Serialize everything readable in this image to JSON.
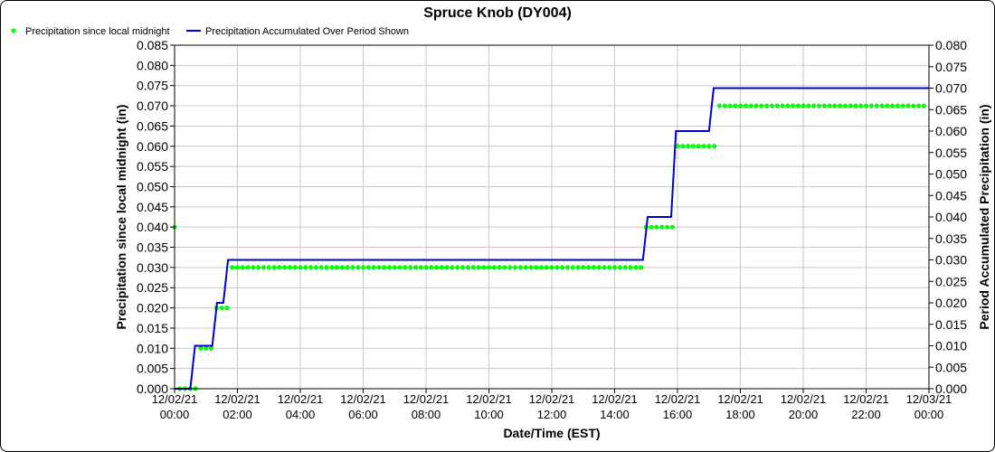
{
  "chart_data": {
    "type": "line",
    "title": "Spruce Knob (DY004)",
    "xlabel": "Date/Time (EST)",
    "ylabel_left": "Precipitation since local midnight (in)",
    "ylabel_right": "Period Accumulated Precipitation (in)",
    "ylim_left": [
      0,
      0.085
    ],
    "ylim_right": [
      0,
      0.08
    ],
    "yticks_left": [
      "0.000",
      "0.005",
      "0.010",
      "0.015",
      "0.020",
      "0.025",
      "0.030",
      "0.035",
      "0.040",
      "0.045",
      "0.050",
      "0.055",
      "0.060",
      "0.065",
      "0.070",
      "0.075",
      "0.080",
      "0.085"
    ],
    "yticks_right": [
      "0.000",
      "0.005",
      "0.010",
      "0.015",
      "0.020",
      "0.025",
      "0.030",
      "0.035",
      "0.040",
      "0.045",
      "0.050",
      "0.055",
      "0.060",
      "0.065",
      "0.070",
      "0.075",
      "0.080"
    ],
    "xlim_hours": [
      0,
      24
    ],
    "xticks": [
      {
        "date": "12/02/21",
        "time": "00:00"
      },
      {
        "date": "12/02/21",
        "time": "02:00"
      },
      {
        "date": "12/02/21",
        "time": "04:00"
      },
      {
        "date": "12/02/21",
        "time": "06:00"
      },
      {
        "date": "12/02/21",
        "time": "08:00"
      },
      {
        "date": "12/02/21",
        "time": "10:00"
      },
      {
        "date": "12/02/21",
        "time": "12:00"
      },
      {
        "date": "12/02/21",
        "time": "14:00"
      },
      {
        "date": "12/02/21",
        "time": "16:00"
      },
      {
        "date": "12/02/21",
        "time": "18:00"
      },
      {
        "date": "12/02/21",
        "time": "20:00"
      },
      {
        "date": "12/02/21",
        "time": "22:00"
      },
      {
        "date": "12/03/21",
        "time": "00:00"
      }
    ],
    "grid": true,
    "legend_position": "top-left",
    "series": [
      {
        "name": "Precipitation since local midnight",
        "color": "#00ff00",
        "marker": "dot",
        "axis": "left",
        "x_start": 0,
        "x_step": 0.1667,
        "x_end": 24,
        "steps": [
          {
            "from": 0.0,
            "value": 0.04
          },
          {
            "from": 0.1,
            "value": 0.0
          },
          {
            "from": 0.67,
            "value": 0.01
          },
          {
            "from": 1.33,
            "value": 0.02
          },
          {
            "from": 1.67,
            "value": 0.03
          },
          {
            "from": 15.0,
            "value": 0.04
          },
          {
            "from": 16.0,
            "value": 0.06
          },
          {
            "from": 17.33,
            "value": 0.07
          }
        ]
      },
      {
        "name": "Precipitation Accumulated Over Period Shown",
        "color": "#0000cc",
        "marker": "line",
        "axis": "right",
        "points": [
          [
            0.0,
            0.0
          ],
          [
            0.5,
            0.0
          ],
          [
            0.65,
            0.01
          ],
          [
            1.2,
            0.01
          ],
          [
            1.35,
            0.02
          ],
          [
            1.55,
            0.02
          ],
          [
            1.7,
            0.03
          ],
          [
            14.9,
            0.03
          ],
          [
            15.05,
            0.04
          ],
          [
            15.8,
            0.04
          ],
          [
            15.95,
            0.06
          ],
          [
            17.0,
            0.06
          ],
          [
            17.15,
            0.07
          ],
          [
            24.0,
            0.07
          ]
        ]
      }
    ]
  }
}
